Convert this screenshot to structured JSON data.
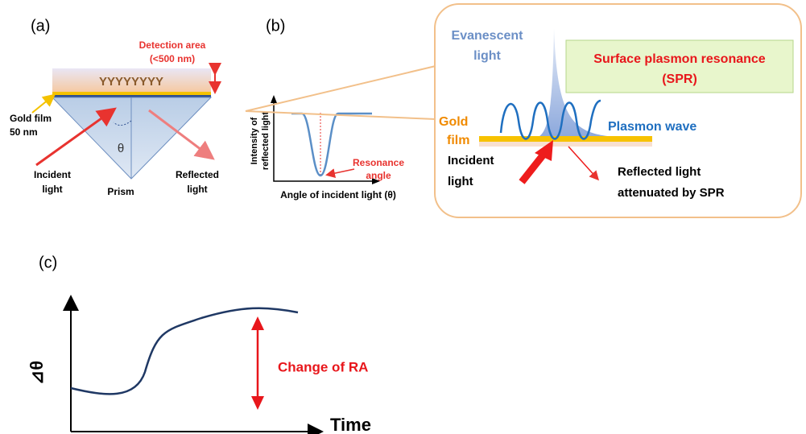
{
  "panel_a": {
    "label": "(a)",
    "detection_area": [
      "Detection area",
      "(<500 nm)"
    ],
    "gold_film": [
      "Gold film",
      "50 nm"
    ],
    "antibodies": "YYYYYYYY",
    "theta": "θ",
    "incident": [
      "Incident",
      "light"
    ],
    "prism": "Prism",
    "reflected": [
      "Reflected",
      "light"
    ]
  },
  "panel_b": {
    "label": "(b)",
    "y_axis": [
      "Intensity of",
      "reflected light"
    ],
    "resonance": [
      "Resonance",
      "angle"
    ],
    "x_axis": "Angle of incident light (θ)"
  },
  "callout": {
    "evanescent": [
      "Evanescent",
      "light"
    ],
    "spr": [
      "Surface plasmon resonance",
      "(SPR)"
    ],
    "gold_film": [
      "Gold",
      "film"
    ],
    "plasmon_wave": "Plasmon wave",
    "incident": [
      "Incident",
      "light"
    ],
    "reflected": [
      "Reflected light",
      "attenuated by SPR"
    ]
  },
  "panel_c": {
    "label": "(c)",
    "y_axis": "⊿θ",
    "change": "Change of RA",
    "x_axis": "Time"
  }
}
